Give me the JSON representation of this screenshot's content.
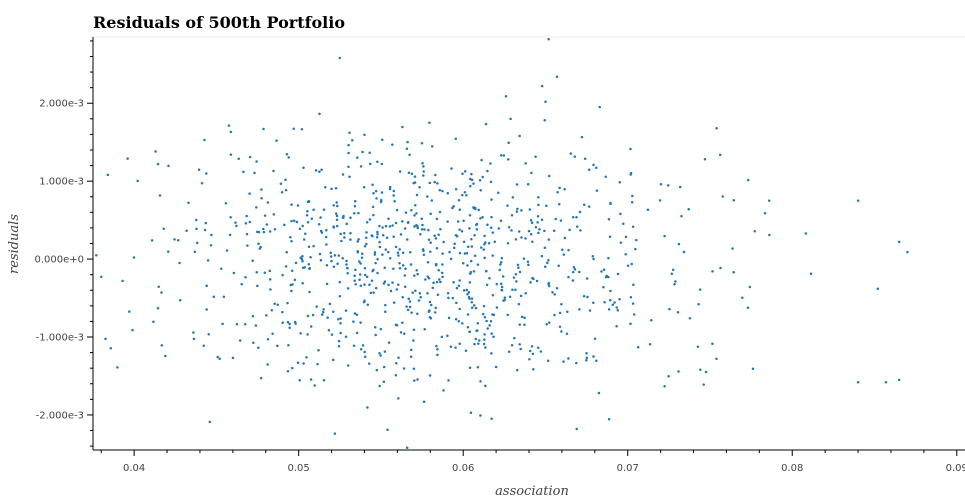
{
  "chart_data": {
    "type": "scatter",
    "title": "Residuals of 500th Portfolio",
    "xlabel": "association",
    "ylabel": "residuals",
    "xlim": [
      0.0375,
      0.0905
    ],
    "ylim": [
      -0.00245,
      0.00285
    ],
    "x_ticks": [
      {
        "value": 0.04,
        "label": "0.04"
      },
      {
        "value": 0.05,
        "label": "0.05"
      },
      {
        "value": 0.06,
        "label": "0.06"
      },
      {
        "value": 0.07,
        "label": "0.07"
      },
      {
        "value": 0.08,
        "label": "0.08"
      },
      {
        "value": 0.09,
        "label": "0.09"
      }
    ],
    "y_ticks": [
      {
        "value": -0.002,
        "label": "-2.000e-3"
      },
      {
        "value": -0.001,
        "label": "-1.000e-3"
      },
      {
        "value": 0.0,
        "label": "0.000e+0"
      },
      {
        "value": 0.001,
        "label": "1.000e-3"
      },
      {
        "value": 0.002,
        "label": "2.000e-3"
      }
    ],
    "grid": false,
    "marker_color": "#1f77b4",
    "notable_points": [
      {
        "x": 0.0525,
        "y": 0.00258
      },
      {
        "x": 0.0652,
        "y": 0.00282
      },
      {
        "x": 0.0657,
        "y": 0.00234
      },
      {
        "x": 0.0648,
        "y": 0.00222
      },
      {
        "x": 0.0626,
        "y": 0.00209
      },
      {
        "x": 0.065,
        "y": 0.00202
      },
      {
        "x": 0.0683,
        "y": 0.00195
      },
      {
        "x": 0.0377,
        "y": 5e-05
      },
      {
        "x": 0.0384,
        "y": 0.00108
      },
      {
        "x": 0.0396,
        "y": 0.00129
      },
      {
        "x": 0.0393,
        "y": -0.00028
      },
      {
        "x": 0.0446,
        "y": -0.00209
      },
      {
        "x": 0.0522,
        "y": -0.00224
      },
      {
        "x": 0.0566,
        "y": -0.00242
      },
      {
        "x": 0.0554,
        "y": -0.00219
      },
      {
        "x": 0.0669,
        "y": -0.00218
      },
      {
        "x": 0.0754,
        "y": 0.00168
      },
      {
        "x": 0.084,
        "y": 0.00075
      },
      {
        "x": 0.084,
        "y": -0.00158
      },
      {
        "x": 0.0857,
        "y": -0.00158
      },
      {
        "x": 0.0865,
        "y": -0.00155
      },
      {
        "x": 0.0865,
        "y": 0.00022
      },
      {
        "x": 0.087,
        "y": 9e-05
      },
      {
        "x": 0.0852,
        "y": -0.00038
      }
    ],
    "cloud": {
      "count": 960,
      "x_center": 0.0575,
      "x_spread": 0.0085,
      "x_min": 0.0378,
      "x_max": 0.0868,
      "y_spread": 0.00082,
      "y_min": -0.0021,
      "y_max": 0.0019,
      "seed": 500
    }
  }
}
